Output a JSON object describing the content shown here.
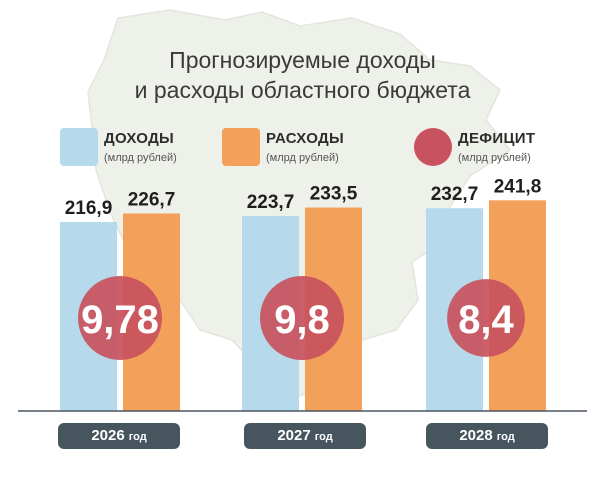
{
  "title_line1": "Прогнозируемые доходы",
  "title_line2": "и расходы областного бюджета",
  "legend": [
    {
      "label": "ДОХОДЫ",
      "unit": "(млрд рублей)",
      "color": "#b7d9ec"
    },
    {
      "label": "РАСХОДЫ",
      "unit": "(млрд рублей)",
      "color": "#f2a05a"
    },
    {
      "label": "ДЕФИЦИТ",
      "unit": "(млрд рублей)",
      "color": "#c8535e"
    }
  ],
  "years": [
    {
      "year": "2026",
      "suffix": "год"
    },
    {
      "year": "2027",
      "suffix": "год"
    },
    {
      "year": "2028",
      "suffix": "год"
    }
  ],
  "chart_data": {
    "type": "bar",
    "categories": [
      "2026 год",
      "2027 год",
      "2028 год"
    ],
    "series": [
      {
        "name": "ДОХОДЫ",
        "values": [
          216.9,
          223.7,
          232.7
        ],
        "labels": [
          "216,9",
          "223,7",
          "232,7"
        ]
      },
      {
        "name": "РАСХОДЫ",
        "values": [
          226.7,
          233.5,
          241.8
        ],
        "labels": [
          "226,7",
          "233,5",
          "241,8"
        ]
      },
      {
        "name": "ДЕФИЦИТ",
        "values": [
          9.78,
          9.8,
          8.4
        ],
        "labels": [
          "9,78",
          "9,8",
          "8,4"
        ]
      }
    ],
    "ylim": [
      0,
      250
    ],
    "grid": false,
    "legend_position": "top"
  }
}
